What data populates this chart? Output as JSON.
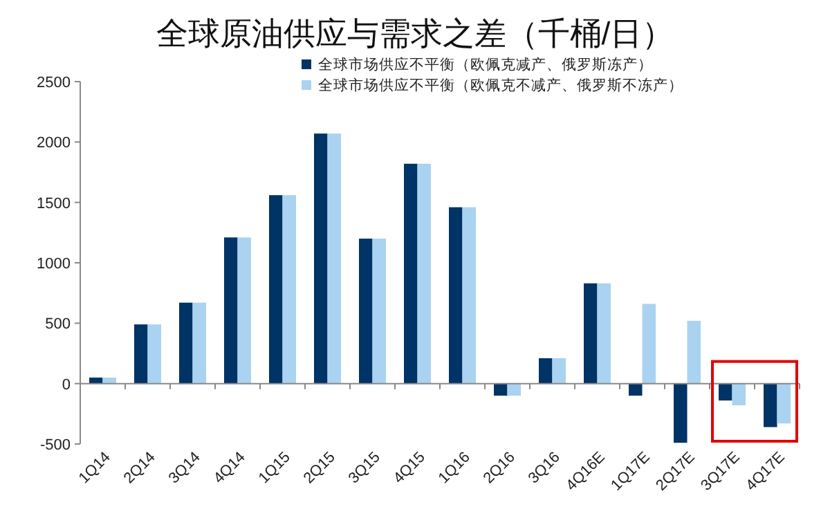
{
  "chart_data": {
    "type": "bar",
    "title": "全球原油供应与需求之差（千桶/日）",
    "categories": [
      "1Q14",
      "2Q14",
      "3Q14",
      "4Q14",
      "1Q15",
      "2Q15",
      "3Q15",
      "4Q15",
      "1Q16",
      "2Q16",
      "3Q16",
      "4Q16E",
      "1Q17E",
      "2Q17E",
      "3Q17E",
      "4Q17E"
    ],
    "series": [
      {
        "name": "全球市场供应不平衡（欧佩克减产、俄罗斯冻产）",
        "color": "#003366",
        "values": [
          50,
          490,
          670,
          1210,
          1560,
          2070,
          1200,
          1820,
          1460,
          -100,
          210,
          830,
          -100,
          -490,
          -140,
          -360
        ]
      },
      {
        "name": "全球市场供应不平衡（欧佩克不减产、俄罗斯不冻产）",
        "color": "#a9d3f0",
        "values": [
          50,
          490,
          670,
          1210,
          1560,
          2070,
          1200,
          1820,
          1460,
          -100,
          210,
          830,
          660,
          520,
          -180,
          -330
        ]
      }
    ],
    "ylim": [
      -500,
      2500
    ],
    "yticks": [
      -500,
      0,
      500,
      1000,
      1500,
      2000,
      2500
    ],
    "legend": "top right"
  }
}
